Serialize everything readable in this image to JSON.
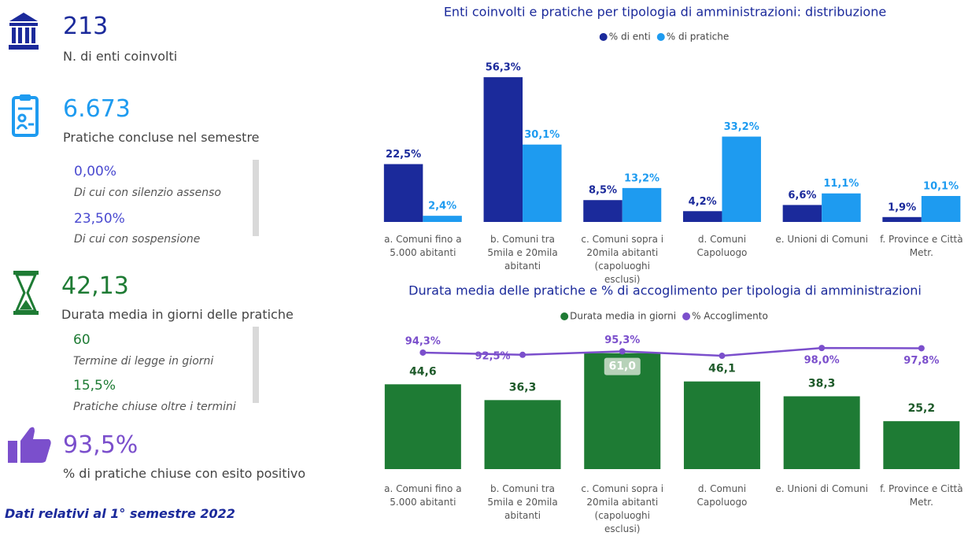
{
  "kpis": [
    {
      "value": "213",
      "label": "N. di enti coinvolti"
    },
    {
      "value": "6.673",
      "label": "Pratiche concluse nel semestre",
      "details": [
        {
          "value": "0,00%",
          "label": "Di cui con silenzio assenso"
        },
        {
          "value": "23,50%",
          "label": "Di cui con sospensione"
        }
      ]
    },
    {
      "value": "42,13",
      "label": "Durata media in giorni delle pratiche",
      "details": [
        {
          "value": "60",
          "label": "Termine di legge in giorni"
        },
        {
          "value": "15,5%",
          "label": "Pratiche chiuse oltre i termini"
        }
      ]
    },
    {
      "value": "93,5%",
      "label": "% di pratiche chiuse con esito positivo"
    }
  ],
  "footnote": "Dati relativi al 1° semestre 2022",
  "chart_data": [
    {
      "type": "grouped_bar",
      "title": "Enti coinvolti e pratiche per tipologia di amministrazioni: distribuzione",
      "categories": [
        "a. Comuni fino a 5.000 abitanti",
        "b. Comuni tra 5mila e 20mila abitanti",
        "c. Comuni sopra i 20mila abitanti (capoluoghi esclusi)",
        "d. Comuni Capoluogo",
        "e. Unioni di Comuni",
        "f. Province e Città Metr."
      ],
      "series": [
        {
          "name": "% di enti",
          "color": "#1b2a9b",
          "values": [
            22.5,
            56.3,
            8.5,
            4.2,
            6.6,
            1.9
          ],
          "value_labels": [
            "22,5%",
            "56,3%",
            "8,5%",
            "4,2%",
            "6,6%",
            "1,9%"
          ]
        },
        {
          "name": "% di pratiche",
          "color": "#1e9bf0",
          "values": [
            2.4,
            30.1,
            13.2,
            33.2,
            11.1,
            10.1
          ],
          "value_labels": [
            "2,4%",
            "30,1%",
            "13,2%",
            "33,2%",
            "11,1%",
            "10,1%"
          ]
        }
      ],
      "ylim": [
        0,
        60
      ]
    },
    {
      "type": "bar_line",
      "title": "Durata media delle pratiche e % di accoglimento per tipologia di amministrazioni",
      "categories": [
        "a. Comuni fino a 5.000 abitanti",
        "b. Comuni tra 5mila e 20mila abitanti",
        "c. Comuni sopra i 20mila abitanti (capoluoghi esclusi)",
        "d. Comuni Capoluogo",
        "e. Unioni di Comuni",
        "f. Province e Città Metr."
      ],
      "series": [
        {
          "name": "Durata media in giorni",
          "color": "#1e7b34",
          "values": [
            44.6,
            36.3,
            61.0,
            46.1,
            38.3,
            25.2
          ],
          "value_labels": [
            "44,6",
            "36,3",
            "61,0",
            "46,1",
            "38,3",
            "25,2"
          ]
        },
        {
          "name": "% Accoglimento",
          "color": "#7b4fcc",
          "axis": "y2",
          "values": [
            94.3,
            92.5,
            95.3,
            91.7,
            98.0,
            97.8
          ],
          "value_labels": [
            "94,3%",
            "92,5%",
            "95,3%",
            null,
            "98,0%",
            "97,8%"
          ]
        }
      ],
      "ylim": [
        0,
        65
      ],
      "y2lim": [
        0,
        100
      ]
    }
  ]
}
